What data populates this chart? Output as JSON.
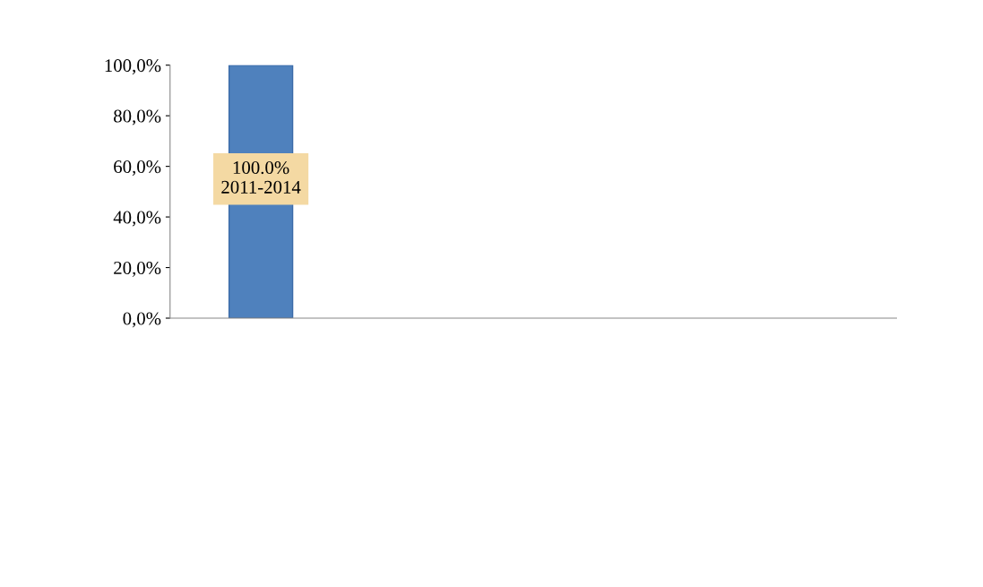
{
  "chart_data": {
    "type": "bar",
    "categories": [
      null,
      null,
      null,
      null
    ],
    "values": [
      100,
      null,
      null,
      null
    ],
    "value_labels": [
      "100.0%\n2011-2014",
      null,
      null,
      null
    ],
    "color": "#4f81bd",
    "ylim": [
      0,
      100
    ],
    "yticks": [
      {
        "value": 0,
        "label": "0,0%"
      },
      {
        "value": 20,
        "label": "20,0%"
      },
      {
        "value": 40,
        "label": "40,0%"
      },
      {
        "value": 60,
        "label": "60,0%"
      },
      {
        "value": 80,
        "label": "80,0%"
      },
      {
        "value": 100,
        "label": "100,0%"
      }
    ],
    "grid": false,
    "legend": false
  }
}
